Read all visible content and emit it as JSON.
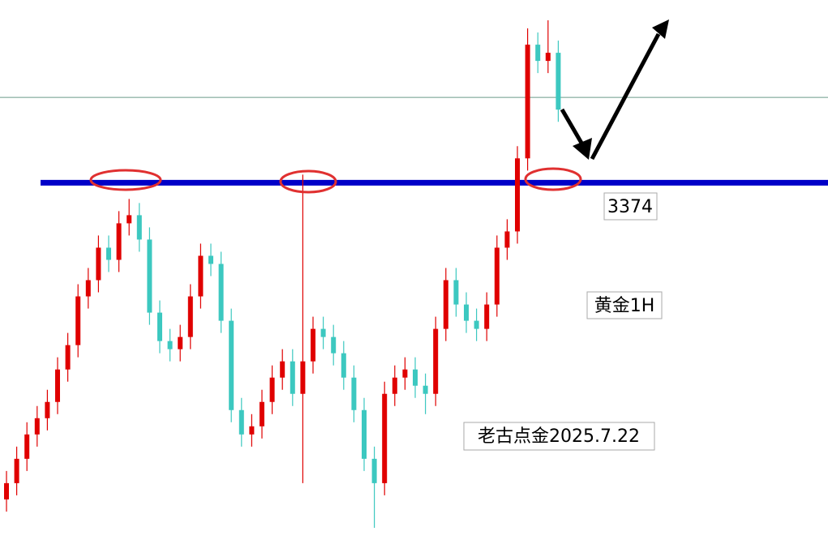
{
  "chart_data": {
    "type": "candlestick",
    "ylim": [
      3286,
      3419
    ],
    "up_color": "#e00000",
    "down_color": "#3cc8c0",
    "hlines": [
      3374,
      3395
    ],
    "hline_colors": [
      "#0000c8",
      "#6a9a8a"
    ],
    "open": [
      3296,
      3300,
      3306,
      3312,
      3316,
      3320,
      3328,
      3334,
      3346,
      3350,
      3358,
      3355,
      3364,
      3366,
      3360,
      3342,
      3335,
      3333,
      3336,
      3346,
      3356,
      3354,
      3340,
      3318,
      3312,
      3314,
      3320,
      3326,
      3330,
      3322,
      3330,
      3338,
      3336,
      3332,
      3326,
      3318,
      3306,
      3300,
      3322,
      3326,
      3328,
      3324,
      3322,
      3338,
      3350,
      3344,
      3340,
      3338,
      3344,
      3358,
      3362,
      3380,
      3408,
      3404,
      3406
    ],
    "high": [
      3303,
      3309,
      3315,
      3319,
      3323,
      3331,
      3337,
      3349,
      3353,
      3361,
      3361,
      3367,
      3370,
      3369,
      3363,
      3345,
      3338,
      3339,
      3349,
      3359,
      3359,
      3357,
      3343,
      3321,
      3317,
      3323,
      3329,
      3333,
      3333,
      3376,
      3341,
      3341,
      3339,
      3335,
      3329,
      3321,
      3309,
      3325,
      3329,
      3331,
      3331,
      3327,
      3341,
      3353,
      3353,
      3347,
      3343,
      3347,
      3361,
      3365,
      3383,
      3412,
      3411,
      3414,
      3409
    ],
    "low": [
      3293,
      3297,
      3303,
      3309,
      3313,
      3317,
      3325,
      3331,
      3343,
      3347,
      3352,
      3352,
      3361,
      3357,
      3339,
      3332,
      3330,
      3330,
      3333,
      3343,
      3351,
      3337,
      3315,
      3309,
      3309,
      3311,
      3317,
      3323,
      3319,
      3300,
      3327,
      3333,
      3329,
      3323,
      3315,
      3303,
      3289,
      3297,
      3319,
      3323,
      3321,
      3317,
      3319,
      3335,
      3341,
      3337,
      3335,
      3335,
      3341,
      3355,
      3359,
      3377,
      3401,
      3401,
      3389
    ],
    "close": [
      3300,
      3306,
      3312,
      3316,
      3320,
      3328,
      3334,
      3346,
      3350,
      3358,
      3355,
      3364,
      3366,
      3360,
      3342,
      3335,
      3333,
      3336,
      3346,
      3356,
      3354,
      3340,
      3318,
      3312,
      3314,
      3320,
      3326,
      3330,
      3322,
      3330,
      3338,
      3336,
      3332,
      3326,
      3318,
      3306,
      3300,
      3322,
      3326,
      3328,
      3324,
      3322,
      3338,
      3350,
      3344,
      3340,
      3338,
      3344,
      3358,
      3362,
      3380,
      3408,
      3404,
      3406,
      3392
    ],
    "annotations": [
      "黄金1H",
      "老古点金2025.7.22"
    ]
  }
}
